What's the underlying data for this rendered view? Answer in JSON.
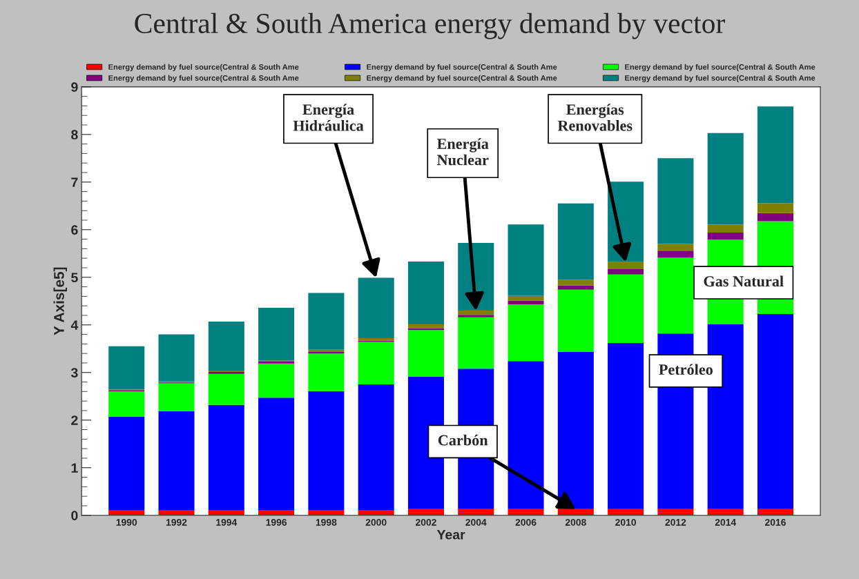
{
  "chart_data": {
    "type": "bar",
    "title": "Central & South America energy demand by vector",
    "xlabel": "Year",
    "ylabel": "Y Axis[e5]",
    "categories": [
      "1990",
      "1992",
      "1994",
      "1996",
      "1998",
      "2000",
      "2002",
      "2004",
      "2006",
      "2008",
      "2010",
      "2012",
      "2014",
      "2016"
    ],
    "stacked": true,
    "ylim": [
      0,
      9
    ],
    "yticks": [
      0,
      1,
      2,
      3,
      4,
      5,
      6,
      7,
      8,
      9
    ],
    "grid": false,
    "legend": "top",
    "series": [
      {
        "name": "Energy demand by fuel source(Central & South Ame",
        "color": "#ff0000",
        "values": [
          0.11,
          0.11,
          0.11,
          0.11,
          0.11,
          0.11,
          0.13,
          0.13,
          0.13,
          0.13,
          0.13,
          0.13,
          0.13,
          0.13
        ]
      },
      {
        "name": "Energy demand by fuel source(Central & South Ame",
        "color": "#0000ff",
        "values": [
          1.96,
          2.08,
          2.21,
          2.36,
          2.5,
          2.64,
          2.78,
          2.95,
          3.11,
          3.3,
          3.49,
          3.69,
          3.89,
          4.1
        ]
      },
      {
        "name": "Energy demand by fuel source(Central & South Ame",
        "color": "#00ff00",
        "values": [
          0.53,
          0.58,
          0.65,
          0.72,
          0.79,
          0.89,
          0.98,
          1.08,
          1.19,
          1.31,
          1.44,
          1.59,
          1.77,
          1.95
        ]
      },
      {
        "name": "Energy demand by fuel source(Central & South Ame",
        "color": "#800080",
        "values": [
          0.02,
          0.02,
          0.04,
          0.04,
          0.03,
          0.03,
          0.04,
          0.05,
          0.08,
          0.09,
          0.11,
          0.15,
          0.15,
          0.17
        ]
      },
      {
        "name": "Energy demand by fuel source(Central & South Ame",
        "color": "#808000",
        "values": [
          0.02,
          0.02,
          0.03,
          0.02,
          0.05,
          0.05,
          0.08,
          0.09,
          0.1,
          0.12,
          0.15,
          0.14,
          0.17,
          0.21
        ]
      },
      {
        "name": "Energy demand by fuel source(Central & South Ame",
        "color": "#008080",
        "values": [
          0.91,
          0.99,
          1.03,
          1.11,
          1.19,
          1.27,
          1.32,
          1.42,
          1.5,
          1.6,
          1.69,
          1.8,
          1.92,
          2.03
        ]
      }
    ],
    "annotations": [
      {
        "text": "Energía\nHidráulica",
        "x": "2000",
        "y": 4.99
      },
      {
        "text": "Energía\nNuclear",
        "x": "2004",
        "y": 4.3
      },
      {
        "text": "Energías\nRenovables",
        "x": "2010",
        "y": 5.32
      },
      "Gas Natural",
      "Petróleo",
      {
        "text": "Carbón",
        "x": "2008",
        "y": 0.13
      }
    ]
  }
}
